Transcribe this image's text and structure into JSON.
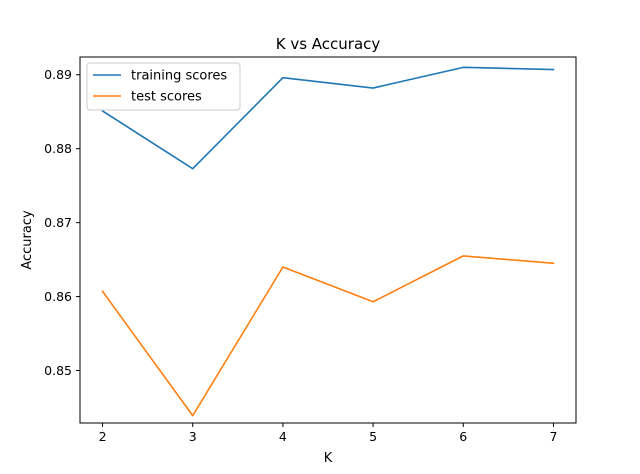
{
  "chart_data": {
    "type": "line",
    "title": "K vs Accuracy",
    "xlabel": "K",
    "ylabel": "Accuracy",
    "x": [
      2,
      3,
      4,
      5,
      6,
      7
    ],
    "xticks": [
      2,
      3,
      4,
      5,
      6,
      7
    ],
    "yticks": [
      0.85,
      0.86,
      0.87,
      0.88,
      0.89
    ],
    "yticklabels": [
      "0.85",
      "0.86",
      "0.87",
      "0.88",
      "0.89"
    ],
    "xlim": [
      1.75,
      7.25
    ],
    "ylim": [
      0.8429,
      0.8924
    ],
    "grid": false,
    "legend_position": "top-left",
    "series": [
      {
        "name": "training scores",
        "color": "#1f77b4",
        "values": [
          0.8851,
          0.8773,
          0.8896,
          0.8882,
          0.891,
          0.8907
        ]
      },
      {
        "name": "test scores",
        "color": "#ff7f0e",
        "values": [
          0.8607,
          0.8439,
          0.864,
          0.8593,
          0.8655,
          0.8645
        ]
      }
    ]
  }
}
